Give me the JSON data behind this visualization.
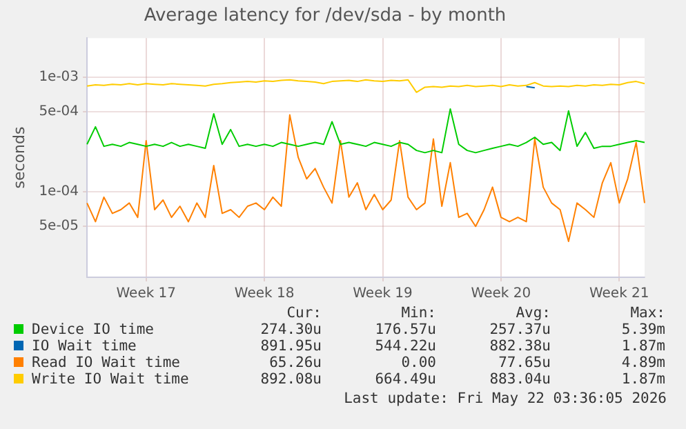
{
  "chart_data": {
    "type": "line",
    "title": "Average latency for /dev/sda - by month",
    "ylabel": "seconds",
    "log": "y",
    "grid": true,
    "legend": "bottom",
    "marker": "none",
    "line_style": "solid",
    "categories": [
      null,
      null,
      null,
      null,
      null,
      null,
      null,
      "Week 17",
      null,
      null,
      null,
      null,
      null,
      null,
      null,
      null,
      null,
      null,
      null,
      null,
      null,
      "Week 18",
      null,
      null,
      null,
      null,
      null,
      null,
      null,
      null,
      null,
      null,
      null,
      null,
      null,
      "Week 19",
      null,
      null,
      null,
      null,
      null,
      null,
      null,
      null,
      null,
      null,
      null,
      null,
      null,
      "Week 20",
      null,
      null,
      null,
      null,
      null,
      null,
      null,
      null,
      null,
      null,
      null,
      null,
      null,
      "Week 21",
      null,
      null,
      null
    ],
    "ylim": [
      1.8e-05,
      0.0022
    ],
    "yticks": [
      {
        "value": 5e-05,
        "label": "5e-05"
      },
      {
        "value": 0.0001,
        "label": "1e-04"
      },
      {
        "value": 0.0005,
        "label": "5e-04"
      },
      {
        "value": 0.001,
        "label": "1e-03"
      }
    ],
    "series": [
      {
        "name": "Device IO time",
        "color": "#00cc00",
        "values": [
          0.00026,
          0.00037,
          0.00025,
          0.00026,
          0.00025,
          0.00027,
          0.00026,
          0.00025,
          0.00026,
          0.00025,
          0.00027,
          0.00025,
          0.00026,
          0.00025,
          0.00024,
          0.00048,
          0.00026,
          0.00035,
          0.00025,
          0.00026,
          0.00025,
          0.00026,
          0.00025,
          0.00027,
          0.00026,
          0.00025,
          0.00026,
          0.00027,
          0.00026,
          0.00041,
          0.00026,
          0.00027,
          0.00026,
          0.00025,
          0.00027,
          0.00026,
          0.00025,
          0.00027,
          0.00026,
          0.00023,
          0.00022,
          0.00023,
          0.00022,
          0.00053,
          0.00026,
          0.00023,
          0.00022,
          0.00023,
          0.00024,
          0.00025,
          0.00026,
          0.00025,
          0.00027,
          0.0003,
          0.00026,
          0.00027,
          0.00023,
          0.00051,
          0.00025,
          0.00033,
          0.00024,
          0.00025,
          0.00025,
          0.00026,
          0.00027,
          0.00028,
          0.00027
        ]
      },
      {
        "name": "IO Wait time",
        "color": "#0066b3",
        "values": [
          null,
          null,
          null,
          null,
          null,
          null,
          null,
          null,
          null,
          null,
          null,
          null,
          null,
          null,
          null,
          null,
          null,
          null,
          null,
          null,
          null,
          null,
          null,
          null,
          null,
          null,
          null,
          null,
          null,
          null,
          null,
          null,
          null,
          null,
          null,
          null,
          null,
          null,
          null,
          null,
          null,
          null,
          null,
          null,
          null,
          null,
          null,
          null,
          null,
          null,
          null,
          null,
          0.00083,
          0.00081,
          null,
          null,
          null,
          null,
          null,
          null,
          null,
          null,
          null,
          null,
          null,
          null,
          null
        ]
      },
      {
        "name": "Read IO Wait time",
        "color": "#ff8000",
        "values": [
          8e-05,
          5.5e-05,
          9e-05,
          6.5e-05,
          7e-05,
          8e-05,
          6e-05,
          0.00028,
          7e-05,
          8.5e-05,
          6e-05,
          7.5e-05,
          5.5e-05,
          8e-05,
          6e-05,
          0.00017,
          6.5e-05,
          7e-05,
          6e-05,
          7.5e-05,
          8e-05,
          7e-05,
          9e-05,
          7.5e-05,
          0.00047,
          0.0002,
          0.00013,
          0.00016,
          0.00011,
          8e-05,
          0.00028,
          9e-05,
          0.00012,
          7e-05,
          9.5e-05,
          7e-05,
          8.5e-05,
          0.00028,
          9e-05,
          7e-05,
          8e-05,
          0.00029,
          7.5e-05,
          0.00018,
          6e-05,
          6.5e-05,
          5e-05,
          7e-05,
          0.00011,
          6e-05,
          5.5e-05,
          6e-05,
          5.5e-05,
          0.00029,
          0.00011,
          8e-05,
          7e-05,
          3.7e-05,
          8e-05,
          7e-05,
          6e-05,
          0.00012,
          0.00018,
          8e-05,
          0.00013,
          0.00027,
          8e-05
        ]
      },
      {
        "name": "Write IO Wait time",
        "color": "#ffcc00",
        "values": [
          0.00084,
          0.00086,
          0.00085,
          0.00087,
          0.00086,
          0.00088,
          0.00086,
          0.00088,
          0.00087,
          0.00086,
          0.00088,
          0.00087,
          0.00086,
          0.00085,
          0.00084,
          0.00087,
          0.00088,
          0.0009,
          0.00091,
          0.00092,
          0.00091,
          0.00093,
          0.00092,
          0.00094,
          0.00095,
          0.00093,
          0.00092,
          0.00091,
          0.00088,
          0.00092,
          0.00093,
          0.00094,
          0.00092,
          0.00095,
          0.00093,
          0.00092,
          0.00094,
          0.00093,
          0.00095,
          0.00074,
          0.00082,
          0.00083,
          0.00082,
          0.00084,
          0.00083,
          0.00085,
          0.00083,
          0.00084,
          0.00085,
          0.00083,
          0.00086,
          0.00084,
          0.00085,
          0.0009,
          0.00084,
          0.00083,
          0.00084,
          0.00083,
          0.00085,
          0.00084,
          0.00086,
          0.00085,
          0.00087,
          0.00086,
          0.0009,
          0.00092,
          0.00088
        ]
      }
    ],
    "annotations": [
      "Cur:",
      "Min:",
      "Avg:",
      "Max:",
      "274.30u",
      "176.57u",
      "257.37u",
      "5.39m",
      "891.95u",
      "544.22u",
      "882.38u",
      "1.87m",
      "65.26u",
      "0.00",
      "77.65u",
      "4.89m",
      "892.08u",
      "664.49u",
      "883.04u",
      "1.87m",
      "Last update: Fri May 22 03:36:05 2026"
    ]
  }
}
